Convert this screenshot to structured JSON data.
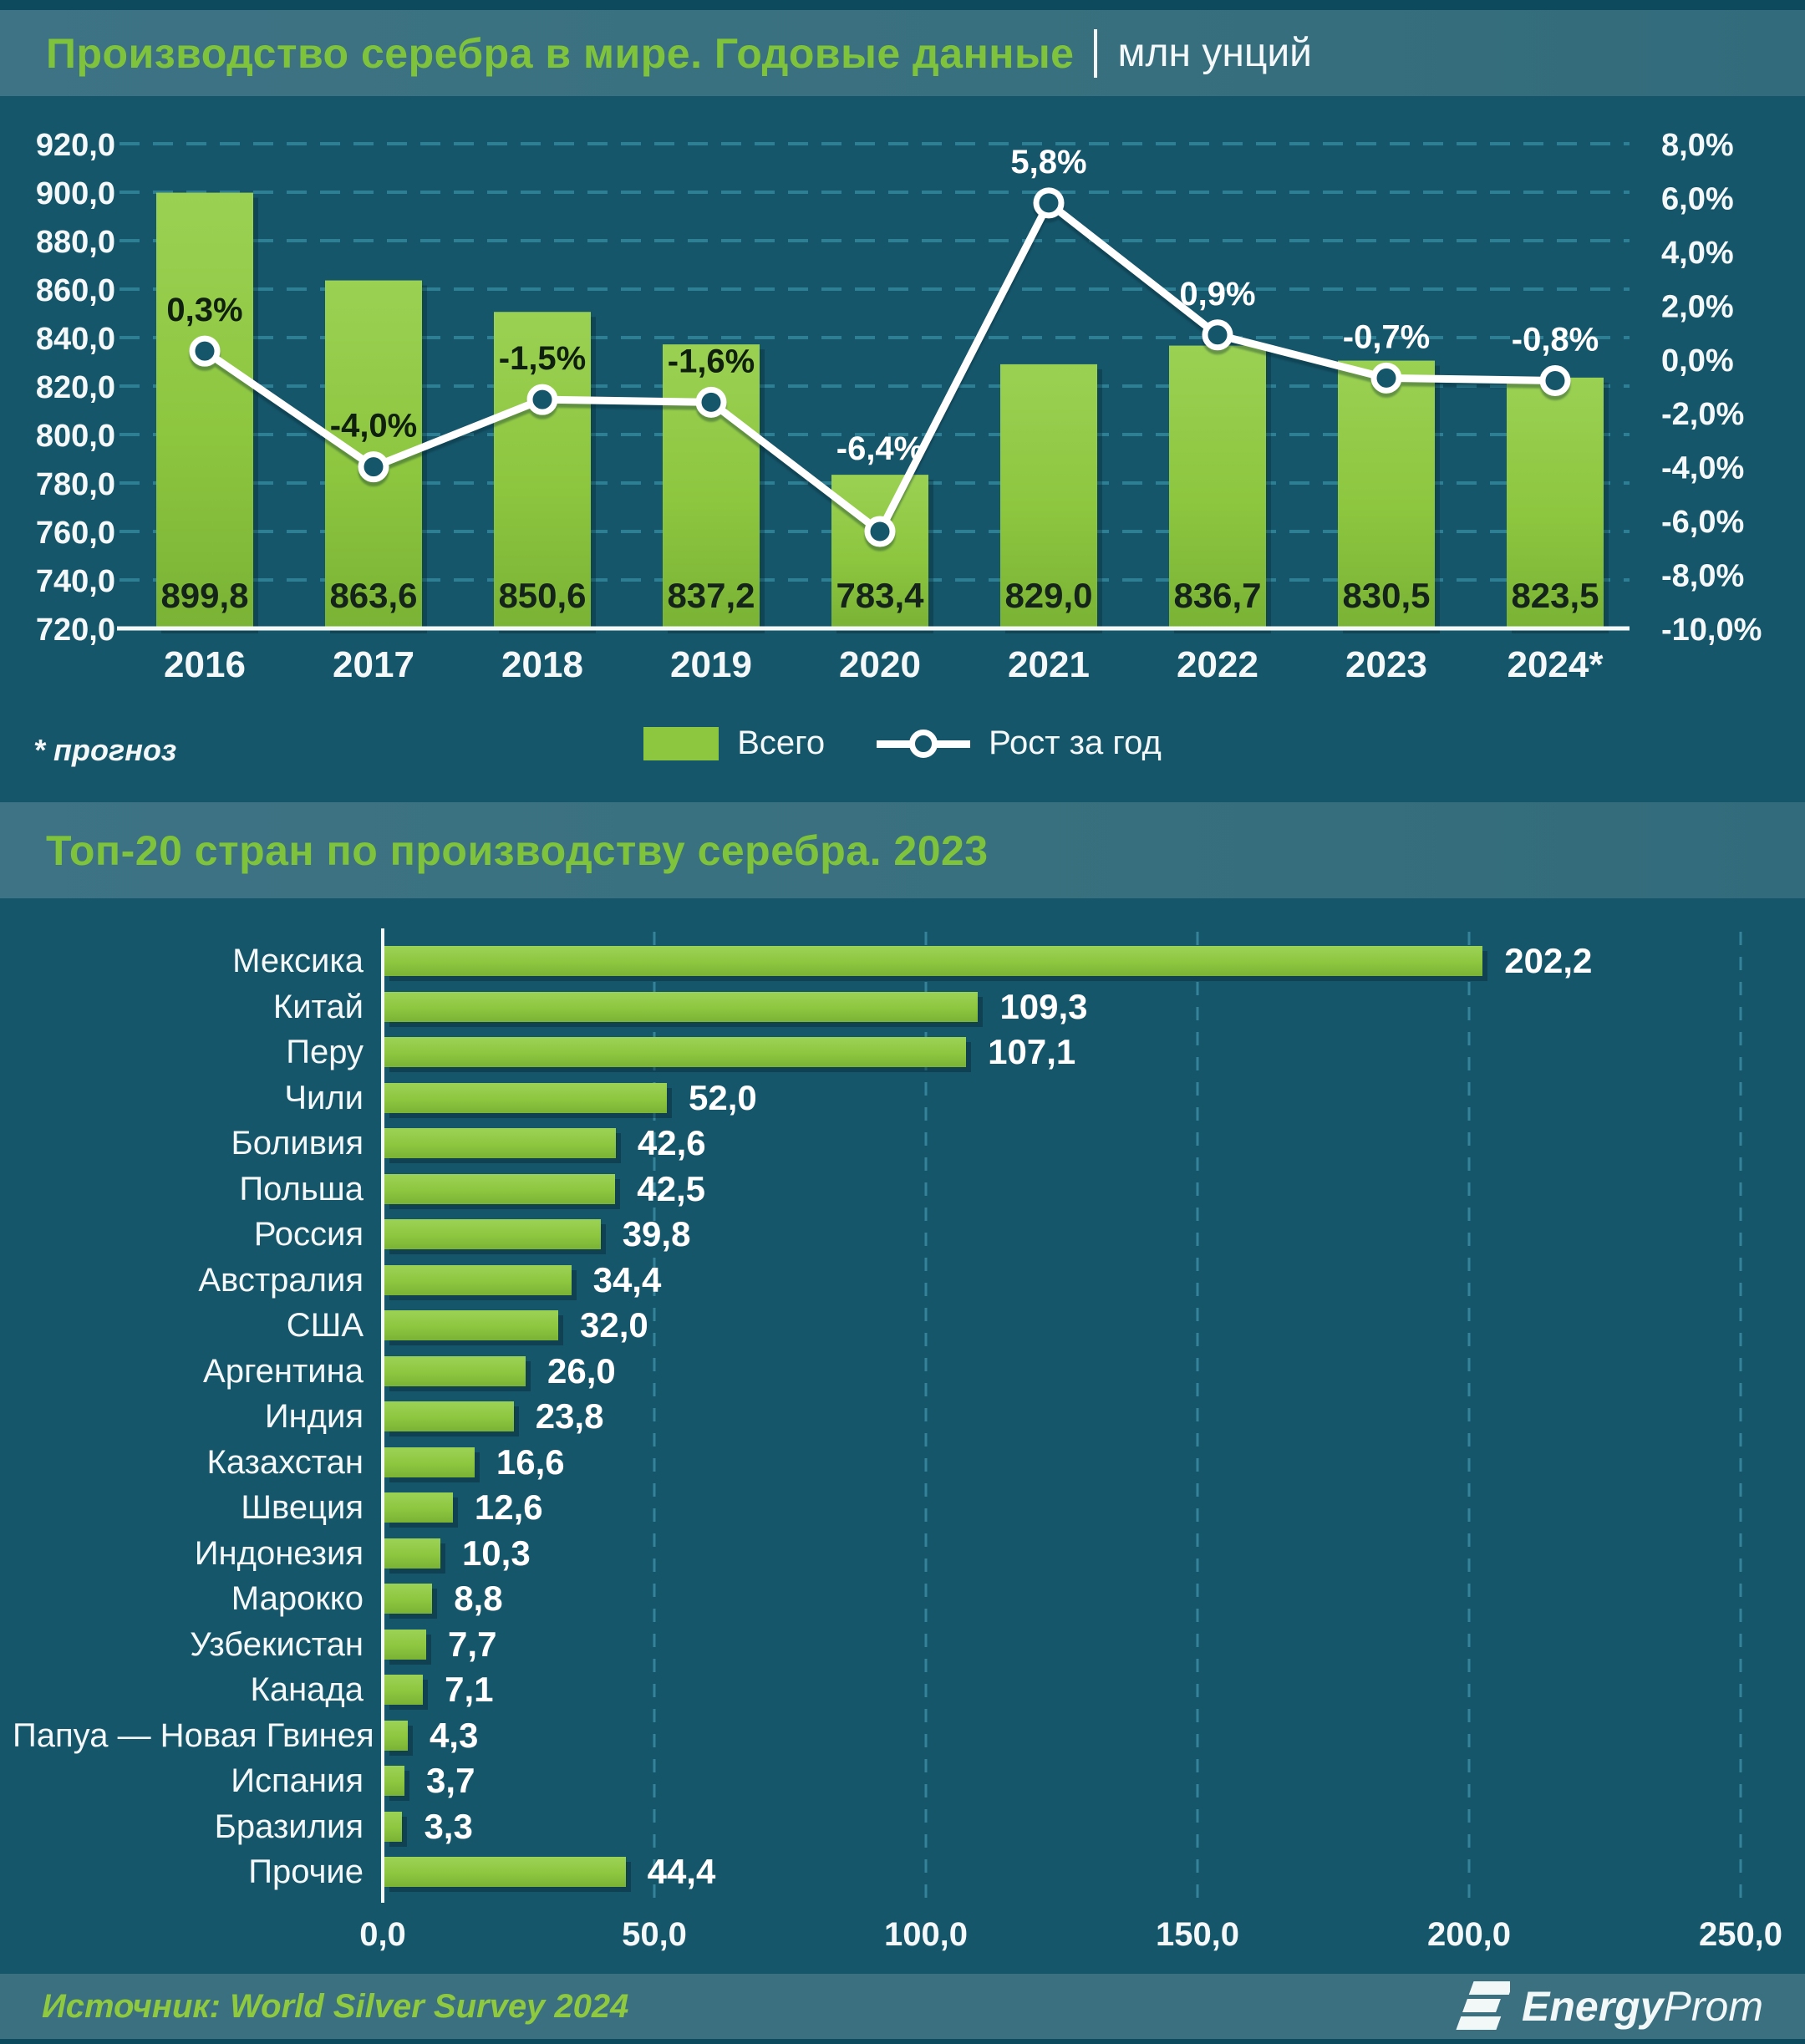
{
  "colors": {
    "background": "#16566B",
    "band": "#3A7080",
    "accent_green": "#7FC33D",
    "bar_green": "#8DC63F",
    "grid": "#2E7E94",
    "axis_white": "#F4F8F9",
    "label_dark": "#10200F",
    "marker_fill": "#16566B"
  },
  "header1": {
    "title": "Производство серебра в мире. Годовые данные",
    "unit": "млн унций"
  },
  "header2": {
    "title": "Топ-20 стран по производству серебра. 2023"
  },
  "footnote": "* прогноз",
  "legend": {
    "bars": "Всего",
    "line": "Рост за год"
  },
  "footer": {
    "source": "Источник: World Silver Survey 2024",
    "logo_bold": "Energy",
    "logo_light": "Prom"
  },
  "chart_data": [
    {
      "type": "bar",
      "subtype": "bar-line-combo",
      "title": "Производство серебра в мире. Годовые данные",
      "unit": "млн унций",
      "categories": [
        "2016",
        "2017",
        "2018",
        "2019",
        "2020",
        "2021",
        "2022",
        "2023",
        "2024*"
      ],
      "series": [
        {
          "name": "Всего",
          "kind": "bar",
          "values": [
            899.8,
            863.6,
            850.6,
            837.2,
            783.4,
            829.0,
            836.7,
            830.5,
            823.5
          ]
        },
        {
          "name": "Рост за год",
          "kind": "line",
          "values": [
            0.3,
            -4.0,
            -1.5,
            -1.6,
            -6.4,
            5.8,
            0.9,
            -0.7,
            -0.8
          ],
          "label_styles": [
            "dark",
            "dark",
            "dark",
            "dark",
            "light",
            "light",
            "light",
            "light",
            "light"
          ]
        }
      ],
      "ylim": [
        720,
        920
      ],
      "y_ticks": [
        "920,0",
        "900,0",
        "880,0",
        "860,0",
        "840,0",
        "820,0",
        "800,0",
        "780,0",
        "760,0",
        "740,0",
        "720,0"
      ],
      "y2lim": [
        -10,
        8
      ],
      "y2_ticks": [
        "8,0%",
        "6,0%",
        "4,0%",
        "2,0%",
        "0,0%",
        "-2,0%",
        "-4,0%",
        "-6,0%",
        "-8,0%",
        "-10,0%"
      ],
      "grid": "horizontal-dashed",
      "legend_position": "bottom",
      "footnote": "* прогноз"
    },
    {
      "type": "bar",
      "orientation": "horizontal",
      "title": "Топ-20 стран по производству серебра. 2023",
      "categories": [
        "Мексика",
        "Китай",
        "Перу",
        "Чили",
        "Боливия",
        "Польша",
        "Россия",
        "Австралия",
        "США",
        "Аргентина",
        "Индия",
        "Казахстан",
        "Швеция",
        "Индонезия",
        "Марокко",
        "Узбекистан",
        "Канада",
        "Папуа — Новая Гвинея",
        "Испания",
        "Бразилия",
        "Прочие"
      ],
      "values": [
        202.2,
        109.3,
        107.1,
        52.0,
        42.6,
        42.5,
        39.8,
        34.4,
        32.0,
        26.0,
        23.8,
        16.6,
        12.6,
        10.3,
        8.8,
        7.7,
        7.1,
        4.3,
        3.7,
        3.3,
        44.4
      ],
      "xlim": [
        0,
        250
      ],
      "x_ticks": [
        "0,0",
        "50,0",
        "100,0",
        "150,0",
        "200,0",
        "250,0"
      ],
      "grid": "vertical-dashed"
    }
  ]
}
